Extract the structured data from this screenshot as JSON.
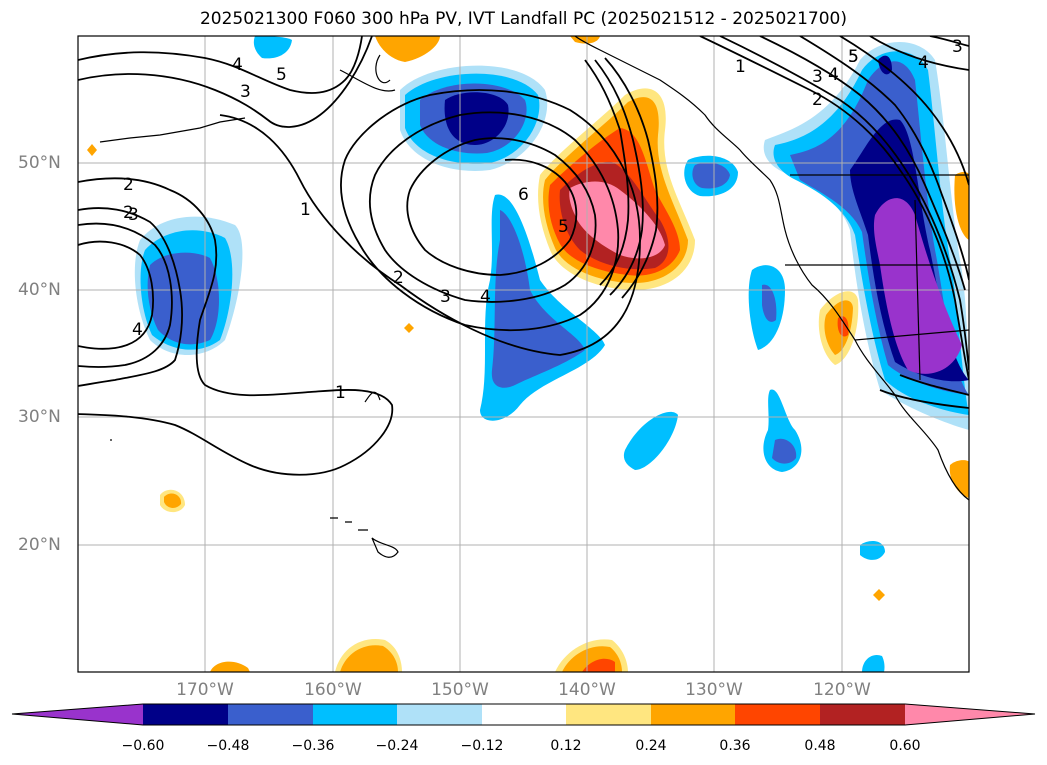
{
  "title": "2025021300 F060 300 hPa PV, IVT Landfall PC (2025021512 - 2025021700)",
  "map": {
    "lat_labels": [
      "50°N",
      "40°N",
      "30°N",
      "20°N"
    ],
    "lon_labels": [
      "170°W",
      "160°W",
      "150°W",
      "140°W",
      "130°W",
      "120°W"
    ],
    "contour_labels": [
      "5",
      "4",
      "3",
      "2",
      "1",
      "2",
      "3",
      "4",
      "5",
      "6",
      "5",
      "1",
      "2",
      "3",
      "4",
      "1",
      "2",
      "3",
      "4",
      "5",
      "4",
      "3"
    ]
  },
  "colorbar": {
    "ticks": [
      "−0.60",
      "−0.48",
      "−0.36",
      "−0.24",
      "−0.12",
      "0.12",
      "0.24",
      "0.36",
      "0.48",
      "0.60"
    ],
    "colors": [
      "#9933cc",
      "#000088",
      "#3a5fcd",
      "#00bfff",
      "#afe1f8",
      "#ffffff",
      "#ffe680",
      "#ffa500",
      "#ff4500",
      "#b22222",
      "#ff88aa"
    ]
  }
}
